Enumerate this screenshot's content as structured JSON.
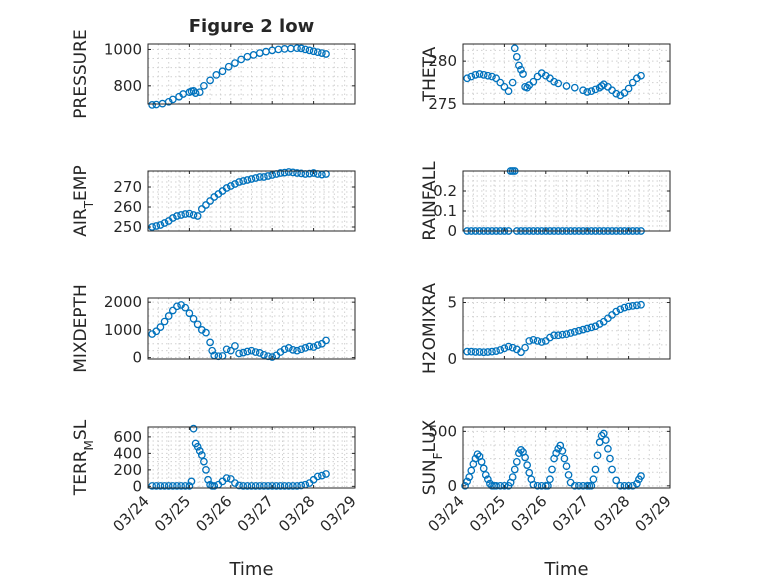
{
  "figure": {
    "colors": {
      "marker": "#0072BD",
      "axes": "#262626",
      "grid": "#d0d0d0",
      "background": "#ffffff"
    },
    "x_tick_labels": [
      "03/24",
      "03/25",
      "03/26",
      "03/27",
      "03/28",
      "03/29"
    ],
    "x_label": "Time"
  },
  "chart_data": [
    {
      "type": "scatter",
      "title": "Figure 2 low",
      "ylabel_main": "PRESSURE",
      "ylabel_sub": "",
      "xlim": [
        24,
        29
      ],
      "ylim": [
        700,
        1030
      ],
      "yticks": [
        800,
        1000
      ],
      "ytick_labels": [
        "800",
        "1000"
      ],
      "grid": true,
      "series": [
        {
          "x": [
            24.1,
            24.2,
            24.35,
            24.5,
            24.6,
            24.75,
            24.85,
            25.0,
            25.05,
            25.1,
            25.15,
            25.25,
            25.35,
            25.5,
            25.65,
            25.8,
            25.95,
            26.1,
            26.25,
            26.4,
            26.55,
            26.7,
            26.85,
            27.0,
            27.15,
            27.3,
            27.45,
            27.6,
            27.7,
            27.8,
            27.9,
            28.0,
            28.1,
            28.2,
            28.3
          ],
          "y": [
            695,
            697,
            702,
            712,
            725,
            740,
            755,
            765,
            770,
            772,
            760,
            765,
            800,
            830,
            860,
            880,
            905,
            925,
            945,
            960,
            970,
            980,
            988,
            995,
            1000,
            1003,
            1005,
            1007,
            1006,
            1000,
            995,
            990,
            985,
            980,
            975
          ]
        }
      ]
    },
    {
      "type": "scatter",
      "title": "",
      "ylabel_main": "THETA",
      "ylabel_sub": "",
      "xlim": [
        24,
        29
      ],
      "ylim": [
        275,
        282
      ],
      "yticks": [
        275,
        280
      ],
      "ytick_labels": [
        "275",
        "280"
      ],
      "grid": true,
      "series": [
        {
          "x": [
            24.1,
            24.2,
            24.3,
            24.4,
            24.5,
            24.6,
            24.7,
            24.8,
            24.9,
            25.0,
            25.1,
            25.2,
            25.25,
            25.3,
            25.35,
            25.4,
            25.45,
            25.5,
            25.55,
            25.6,
            25.7,
            25.8,
            25.9,
            26.0,
            26.1,
            26.2,
            26.3,
            26.5,
            26.7,
            26.9,
            27.0,
            27.1,
            27.2,
            27.3,
            27.35,
            27.4,
            27.5,
            27.6,
            27.7,
            27.8,
            27.9,
            28.0,
            28.1,
            28.2,
            28.3
          ],
          "y": [
            278.0,
            278.2,
            278.4,
            278.5,
            278.4,
            278.3,
            278.2,
            278.0,
            277.5,
            277.0,
            276.5,
            277.5,
            281.5,
            280.5,
            279.5,
            279.0,
            278.5,
            277.0,
            276.9,
            277.2,
            277.6,
            278.2,
            278.6,
            278.3,
            278.0,
            277.6,
            277.4,
            277.1,
            276.9,
            276.6,
            276.4,
            276.5,
            276.7,
            276.9,
            277.1,
            277.3,
            277.0,
            276.6,
            276.2,
            276.0,
            276.3,
            276.8,
            277.5,
            278.0,
            278.3
          ]
        }
      ]
    },
    {
      "type": "scatter",
      "title": "",
      "ylabel_main": "AIR",
      "ylabel_sub": "T",
      "ylabel_rest": "EMP",
      "xlim": [
        24,
        29
      ],
      "ylim": [
        248,
        278
      ],
      "yticks": [
        250,
        260,
        270
      ],
      "ytick_labels": [
        "250",
        "260",
        "270"
      ],
      "grid": true,
      "series": [
        {
          "x": [
            24.1,
            24.2,
            24.3,
            24.4,
            24.5,
            24.6,
            24.7,
            24.8,
            24.9,
            25.0,
            25.1,
            25.2,
            25.3,
            25.4,
            25.5,
            25.6,
            25.7,
            25.8,
            25.9,
            26.0,
            26.1,
            26.2,
            26.3,
            26.4,
            26.5,
            26.6,
            26.7,
            26.8,
            26.9,
            27.0,
            27.1,
            27.2,
            27.3,
            27.4,
            27.5,
            27.6,
            27.7,
            27.8,
            27.9,
            28.0,
            28.1,
            28.2,
            28.3
          ],
          "y": [
            250,
            250.5,
            251,
            252,
            253,
            254.5,
            255.5,
            256,
            256.5,
            256.7,
            256,
            255.5,
            259,
            261,
            263,
            265,
            266.5,
            268,
            269.5,
            270.5,
            271.5,
            272.5,
            273,
            273.5,
            274,
            274.5,
            275,
            275,
            275.5,
            276,
            276.5,
            277,
            277.2,
            277.5,
            277.3,
            277,
            276.8,
            276.5,
            276.7,
            277,
            276.5,
            276.2,
            276.5
          ]
        }
      ]
    },
    {
      "type": "scatter",
      "title": "",
      "ylabel_main": "RAINFALL",
      "ylabel_sub": "",
      "xlim": [
        24,
        29
      ],
      "ylim": [
        0,
        0.3
      ],
      "yticks": [
        0,
        0.1,
        0.2
      ],
      "ytick_labels": [
        "0",
        "0.1",
        "0.2"
      ],
      "grid": true,
      "series": [
        {
          "x": [
            24.1,
            24.2,
            24.3,
            24.4,
            24.5,
            24.6,
            24.7,
            24.8,
            24.9,
            25.0,
            25.1,
            25.15,
            25.2,
            25.25,
            25.3,
            25.4,
            25.5,
            25.6,
            25.7,
            25.8,
            25.9,
            26.0,
            26.1,
            26.2,
            26.3,
            26.4,
            26.5,
            26.6,
            26.7,
            26.8,
            26.9,
            27.0,
            27.1,
            27.2,
            27.3,
            27.4,
            27.5,
            27.6,
            27.7,
            27.8,
            27.9,
            28.0,
            28.1,
            28.2,
            28.3
          ],
          "y": [
            0,
            0,
            0,
            0,
            0,
            0,
            0,
            0,
            0,
            0,
            0,
            0.3,
            0.3,
            0.3,
            0,
            0,
            0,
            0,
            0,
            0,
            0,
            0,
            0,
            0,
            0,
            0,
            0,
            0,
            0,
            0,
            0,
            0,
            0,
            0,
            0,
            0,
            0,
            0,
            0,
            0,
            0,
            0,
            0,
            0,
            0
          ]
        }
      ]
    },
    {
      "type": "scatter",
      "title": "",
      "ylabel_main": "MIXDEPTH",
      "ylabel_sub": "",
      "xlim": [
        24,
        29
      ],
      "ylim": [
        -50,
        2150
      ],
      "yticks": [
        0,
        1000,
        2000
      ],
      "ytick_labels": [
        "0",
        "1000",
        "2000"
      ],
      "grid": true,
      "series": [
        {
          "x": [
            24.1,
            24.2,
            24.3,
            24.4,
            24.5,
            24.6,
            24.7,
            24.8,
            24.9,
            25.0,
            25.1,
            25.2,
            25.3,
            25.4,
            25.5,
            25.55,
            25.6,
            25.7,
            25.8,
            25.9,
            26.0,
            26.1,
            26.2,
            26.3,
            26.4,
            26.5,
            26.6,
            26.7,
            26.8,
            26.9,
            27.0,
            27.1,
            27.2,
            27.3,
            27.4,
            27.5,
            27.6,
            27.7,
            27.8,
            27.9,
            28.0,
            28.1,
            28.2,
            28.3
          ],
          "y": [
            850,
            950,
            1100,
            1300,
            1500,
            1700,
            1850,
            1900,
            1800,
            1600,
            1400,
            1200,
            1000,
            900,
            550,
            250,
            80,
            50,
            60,
            300,
            250,
            420,
            150,
            180,
            220,
            250,
            200,
            170,
            100,
            50,
            20,
            80,
            200,
            300,
            350,
            280,
            250,
            300,
            350,
            400,
            380,
            450,
            500,
            620
          ]
        }
      ]
    },
    {
      "type": "scatter",
      "title": "",
      "ylabel_main": "H2OMIXRA",
      "ylabel_sub": "",
      "xlim": [
        24,
        29
      ],
      "ylim": [
        0,
        5.4
      ],
      "yticks": [
        0,
        5
      ],
      "ytick_labels": [
        "0",
        "5"
      ],
      "grid": true,
      "series": [
        {
          "x": [
            24.1,
            24.2,
            24.3,
            24.4,
            24.5,
            24.6,
            24.7,
            24.8,
            24.9,
            25.0,
            25.1,
            25.2,
            25.3,
            25.4,
            25.5,
            25.6,
            25.7,
            25.8,
            25.9,
            26.0,
            26.1,
            26.2,
            26.3,
            26.4,
            26.5,
            26.6,
            26.7,
            26.8,
            26.9,
            27.0,
            27.1,
            27.2,
            27.3,
            27.4,
            27.5,
            27.6,
            27.7,
            27.8,
            27.9,
            28.0,
            28.1,
            28.2,
            28.3
          ],
          "y": [
            0.65,
            0.65,
            0.62,
            0.62,
            0.6,
            0.62,
            0.65,
            0.7,
            0.8,
            0.95,
            1.1,
            1.0,
            0.85,
            0.6,
            1.0,
            1.6,
            1.7,
            1.6,
            1.5,
            1.6,
            1.9,
            2.1,
            2.1,
            2.15,
            2.2,
            2.3,
            2.4,
            2.5,
            2.6,
            2.7,
            2.8,
            2.9,
            3.1,
            3.3,
            3.6,
            3.9,
            4.2,
            4.4,
            4.55,
            4.65,
            4.7,
            4.75,
            4.8
          ]
        }
      ]
    },
    {
      "type": "scatter",
      "title": "",
      "ylabel_main": "TERR",
      "ylabel_sub": "M",
      "ylabel_rest": "SL",
      "xlim": [
        24,
        29
      ],
      "ylim": [
        -20,
        720
      ],
      "yticks": [
        0,
        200,
        400,
        600
      ],
      "ytick_labels": [
        "0",
        "200",
        "400",
        "600"
      ],
      "grid": true,
      "series": [
        {
          "x": [
            24.1,
            24.2,
            24.3,
            24.4,
            24.5,
            24.6,
            24.7,
            24.8,
            24.9,
            25.0,
            25.05,
            25.1,
            25.15,
            25.2,
            25.25,
            25.3,
            25.35,
            25.4,
            25.45,
            25.5,
            25.55,
            25.6,
            25.7,
            25.8,
            25.9,
            26.0,
            26.1,
            26.2,
            26.3,
            26.4,
            26.5,
            26.6,
            26.7,
            26.8,
            26.9,
            27.0,
            27.1,
            27.2,
            27.3,
            27.4,
            27.5,
            27.6,
            27.7,
            27.8,
            27.9,
            28.0,
            28.1,
            28.2,
            28.3
          ],
          "y": [
            5,
            5,
            5,
            5,
            5,
            5,
            5,
            5,
            5,
            5,
            60,
            700,
            520,
            480,
            430,
            380,
            300,
            200,
            80,
            20,
            5,
            5,
            20,
            60,
            100,
            90,
            40,
            10,
            5,
            5,
            5,
            5,
            5,
            5,
            5,
            5,
            5,
            5,
            5,
            5,
            5,
            5,
            10,
            20,
            40,
            80,
            120,
            130,
            150
          ]
        }
      ]
    },
    {
      "type": "scatter",
      "title": "",
      "ylabel_main": "SUN",
      "ylabel_sub": "F",
      "ylabel_rest": "LUX",
      "xlim": [
        24,
        29
      ],
      "ylim": [
        -20,
        540
      ],
      "yticks": [
        0,
        500
      ],
      "ytick_labels": [
        "0",
        "500"
      ],
      "grid": true,
      "series": [
        {
          "x": [
            24.05,
            24.1,
            24.15,
            24.2,
            24.25,
            24.3,
            24.35,
            24.4,
            24.45,
            24.5,
            24.55,
            24.6,
            24.65,
            24.7,
            24.75,
            24.8,
            24.9,
            25.0,
            25.1,
            25.15,
            25.2,
            25.25,
            25.3,
            25.35,
            25.4,
            25.45,
            25.5,
            25.55,
            25.6,
            25.65,
            25.7,
            25.8,
            25.9,
            26.0,
            26.05,
            26.1,
            26.15,
            26.2,
            26.25,
            26.3,
            26.35,
            26.4,
            26.45,
            26.5,
            26.55,
            26.6,
            26.7,
            26.8,
            26.9,
            27.0,
            27.05,
            27.1,
            27.15,
            27.2,
            27.25,
            27.3,
            27.35,
            27.4,
            27.45,
            27.5,
            27.55,
            27.6,
            27.7,
            27.8,
            27.9,
            28.0,
            28.1,
            28.2,
            28.25,
            28.3
          ],
          "y": [
            0,
            40,
            80,
            140,
            200,
            250,
            290,
            270,
            220,
            160,
            100,
            60,
            20,
            0,
            0,
            0,
            0,
            0,
            0,
            30,
            80,
            150,
            220,
            300,
            330,
            310,
            260,
            190,
            120,
            60,
            10,
            0,
            0,
            0,
            0,
            60,
            150,
            250,
            300,
            340,
            370,
            320,
            250,
            180,
            100,
            30,
            0,
            0,
            0,
            0,
            0,
            0,
            60,
            150,
            280,
            400,
            460,
            480,
            420,
            340,
            250,
            150,
            50,
            0,
            0,
            0,
            0,
            20,
            60,
            90
          ]
        }
      ]
    }
  ]
}
